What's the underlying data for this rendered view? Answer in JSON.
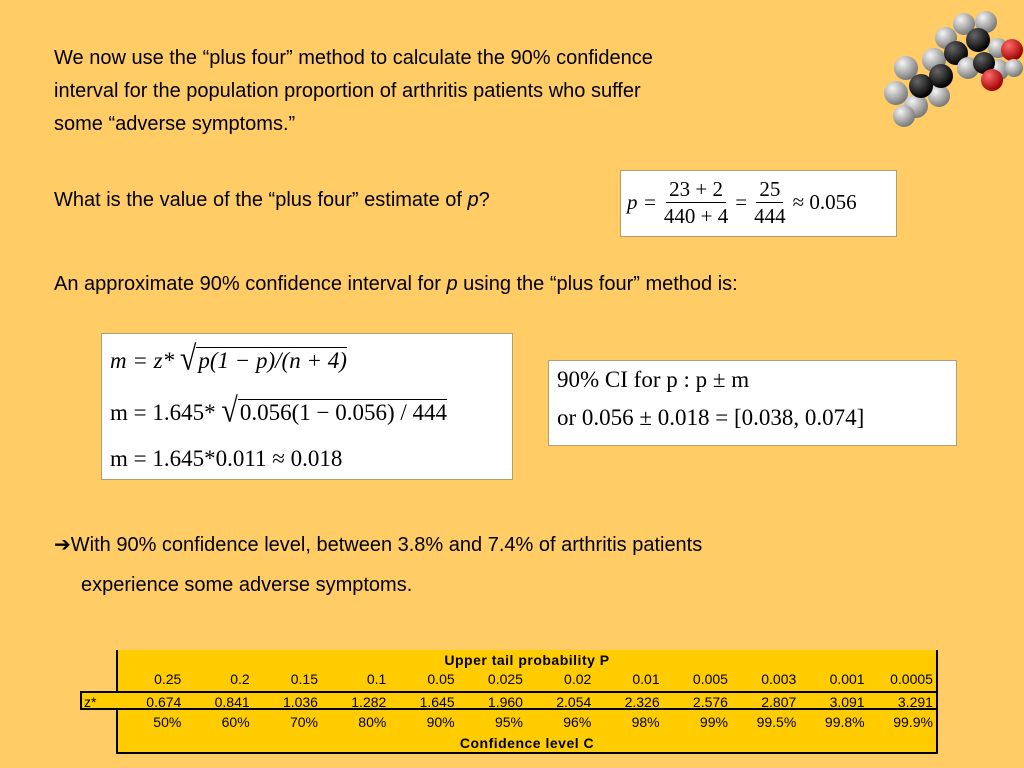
{
  "intro": {
    "line1": "We now use the “plus four” method to calculate the 90% confidence",
    "line2": "interval for the population proportion of arthritis patients who suffer",
    "line3": "some “adverse symptoms.”"
  },
  "question": {
    "text": "What is the value of the “plus four” estimate of ",
    "var": "p",
    "end": "?"
  },
  "estimate": {
    "lhs": "p = ",
    "num1": "23 + 2",
    "den1": "440 + 4",
    "eq": "=",
    "num2": "25",
    "den2": "444",
    "approx": "≈ 0.056"
  },
  "approx_line": {
    "text1": "An approximate 90% confidence interval for ",
    "var": "p",
    "text2": " using the “plus four” method is:"
  },
  "margin": {
    "row1_pre": "m = z* ",
    "row1_rad": "p(1 − p)/(n + 4)",
    "row2_pre": "m = 1.645* ",
    "row2_rad": "0.056(1 − 0.056) / 444",
    "row3": "m = 1.645*0.011 ≈ 0.018"
  },
  "ci": {
    "row1": "90% CI for p :   p ± m",
    "row2": "or  0.056 ± 0.018 = [0.038, 0.074]"
  },
  "conclusion": {
    "arrow": "➔",
    "line1": "With 90% confidence level, between 3.8% and 7.4% of arthritis patients",
    "line2": "experience some adverse symptoms."
  },
  "ztable": {
    "header": "Upper tail probability P",
    "probs": [
      "0.25",
      "0.2",
      "0.15",
      "0.1",
      "0.05",
      "0.025",
      "0.02",
      "0.01",
      "0.005",
      "0.003",
      "0.001",
      "0.0005"
    ],
    "z_label": "z*",
    "zvals": [
      "0.674",
      "0.841",
      "1.036",
      "1.282",
      "1.645",
      "1.960",
      "2.054",
      "2.326",
      "2.576",
      "2.807",
      "3.091",
      "3.291"
    ],
    "levels": [
      "50%",
      "60%",
      "70%",
      "80%",
      "90%",
      "95%",
      "96%",
      "98%",
      "99%",
      "99.5%",
      "99.8%",
      "99.9%"
    ],
    "footer": "Confidence level C"
  }
}
